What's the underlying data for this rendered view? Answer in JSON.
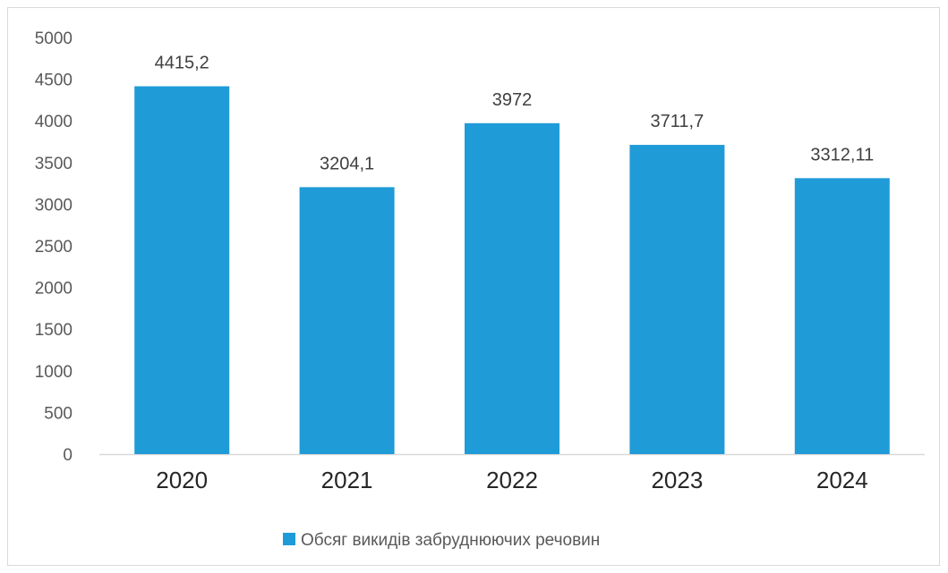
{
  "chart_data": {
    "type": "bar",
    "categories": [
      "2020",
      "2021",
      "2022",
      "2023",
      "2024"
    ],
    "series": [
      {
        "name": "Обсяг викидів забруднюючих речовин",
        "values": [
          4415.2,
          3204.1,
          3972,
          3711.7,
          3312.11
        ],
        "labels": [
          "4415,2",
          "3204,1",
          "3972",
          "3711,7",
          "3312,11"
        ],
        "color": "#1f9bd7"
      }
    ],
    "ylim": [
      0,
      5000
    ],
    "yticks": [
      0,
      500,
      1000,
      1500,
      2000,
      2500,
      3000,
      3500,
      4000,
      4500,
      5000
    ],
    "grid": false,
    "legend_position": "bottom",
    "title": "",
    "xlabel": "",
    "ylabel": ""
  },
  "colors": {
    "bar": "#1f9bd7",
    "axis": "#d9d9d9",
    "frame": "#d9d9d9"
  }
}
